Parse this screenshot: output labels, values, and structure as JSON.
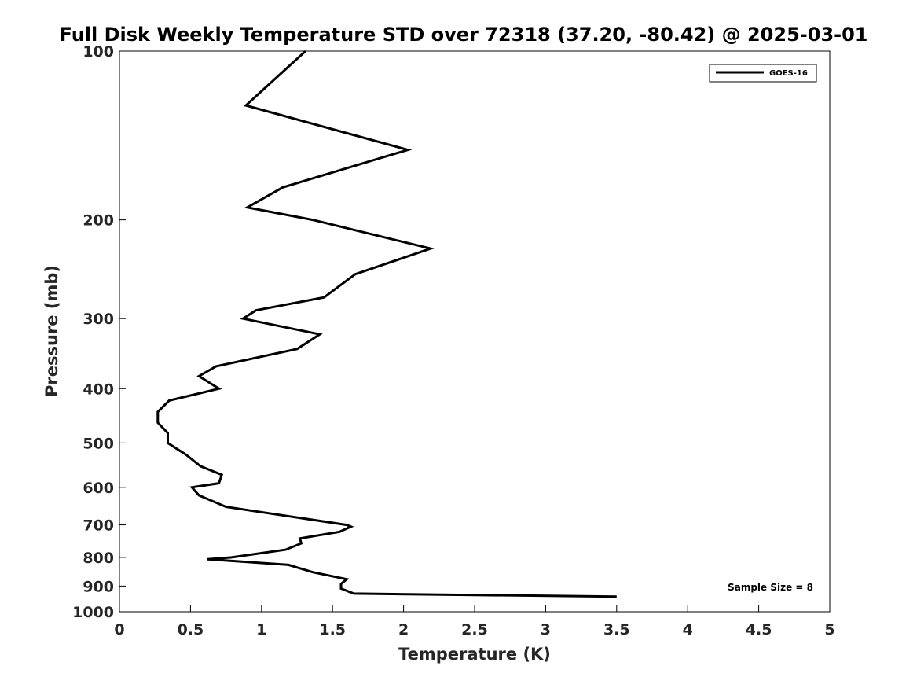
{
  "chart_data": {
    "type": "line",
    "title": "Full Disk Weekly Temperature STD over 72318 (37.20, -80.42) @ 2025-03-01",
    "xlabel": "Temperature (K)",
    "ylabel": "Pressure (mb)",
    "xlim": [
      0,
      5
    ],
    "ylim": [
      100,
      1000
    ],
    "y_scale": "log",
    "y_reversed": true,
    "grid": false,
    "x_ticks": [
      "0",
      "0.5",
      "1",
      "1.5",
      "2",
      "2.5",
      "3",
      "3.5",
      "4",
      "4.5",
      "5"
    ],
    "y_ticks": [
      "100",
      "200",
      "300",
      "400",
      "500",
      "600",
      "700",
      "800",
      "900",
      "1000"
    ],
    "legend": {
      "position": "top-right",
      "entries": [
        "GOES-16"
      ]
    },
    "annotation": "Sample Size = 8",
    "series": [
      {
        "name": "GOES-16",
        "color": "#000000",
        "points": [
          [
            1.31,
            100
          ],
          [
            0.89,
            125
          ],
          [
            2.03,
            150
          ],
          [
            1.15,
            175
          ],
          [
            0.9,
            190
          ],
          [
            1.36,
            200
          ],
          [
            2.19,
            225
          ],
          [
            1.66,
            250
          ],
          [
            1.44,
            275
          ],
          [
            0.96,
            290
          ],
          [
            0.87,
            300
          ],
          [
            1.41,
            320
          ],
          [
            1.25,
            340
          ],
          [
            0.68,
            365
          ],
          [
            0.56,
            380
          ],
          [
            0.7,
            400
          ],
          [
            0.35,
            420
          ],
          [
            0.27,
            440
          ],
          [
            0.27,
            460
          ],
          [
            0.34,
            480
          ],
          [
            0.34,
            500
          ],
          [
            0.47,
            525
          ],
          [
            0.57,
            550
          ],
          [
            0.72,
            570
          ],
          [
            0.7,
            590
          ],
          [
            0.51,
            600
          ],
          [
            0.56,
            620
          ],
          [
            0.75,
            650
          ],
          [
            1.6,
            700
          ],
          [
            1.63,
            705
          ],
          [
            1.55,
            720
          ],
          [
            1.27,
            740
          ],
          [
            1.28,
            755
          ],
          [
            1.17,
            775
          ],
          [
            0.79,
            800
          ],
          [
            0.62,
            806
          ],
          [
            1.19,
            825
          ],
          [
            1.36,
            850
          ],
          [
            1.6,
            875
          ],
          [
            1.56,
            892
          ],
          [
            1.56,
            909
          ],
          [
            1.65,
            928
          ],
          [
            3.5,
            940
          ]
        ]
      }
    ]
  }
}
